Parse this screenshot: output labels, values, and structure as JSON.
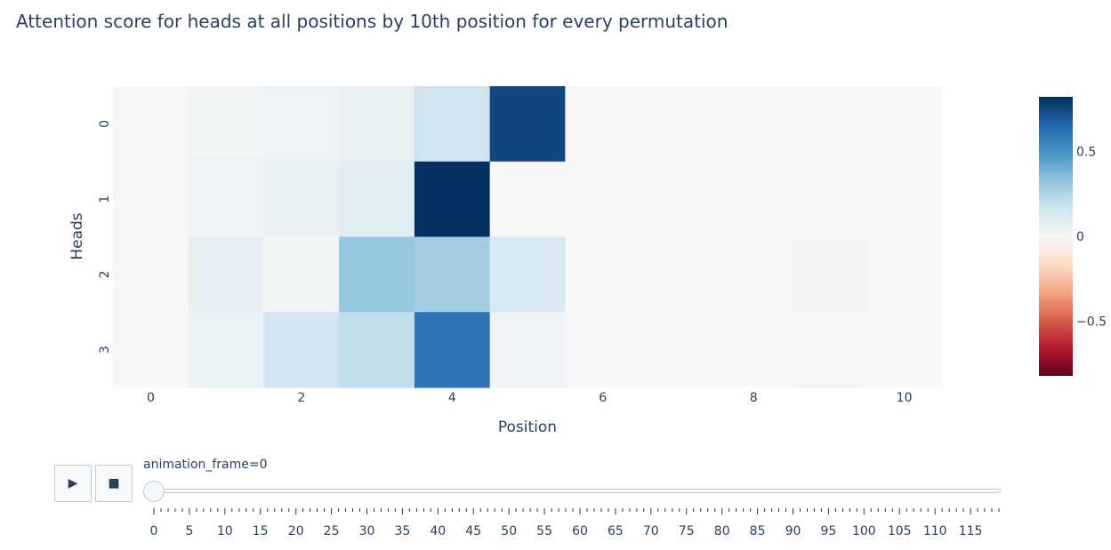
{
  "chart_data": {
    "type": "heatmap",
    "title": "Attention score for heads at all positions by 10th position for every permutation",
    "xlabel": "Position",
    "ylabel": "Heads",
    "x": [
      0,
      1,
      2,
      3,
      4,
      5,
      6,
      7,
      8,
      9,
      10
    ],
    "y": [
      0,
      1,
      2,
      3
    ],
    "z": [
      [
        0.01,
        0.02,
        0.04,
        0.06,
        0.17,
        0.75,
        0.0,
        0.0,
        0.0,
        0.0,
        0.0
      ],
      [
        0.0,
        0.03,
        0.06,
        0.09,
        0.82,
        0.01,
        0.0,
        0.0,
        0.0,
        0.0,
        0.0
      ],
      [
        0.0,
        0.07,
        0.02,
        0.32,
        0.29,
        0.13,
        0.0,
        0.0,
        0.0,
        0.015,
        0.0
      ],
      [
        0.0,
        0.05,
        0.16,
        0.2,
        0.6,
        0.03,
        0.0,
        0.0,
        0.0,
        0.005,
        0.0
      ]
    ],
    "xticks": [
      0,
      2,
      4,
      6,
      8,
      10
    ],
    "yticks": [
      0,
      1,
      2,
      3
    ],
    "colorscale": "RdBu",
    "zlim": [
      -0.82,
      0.82
    ],
    "colorbar_ticks": [
      0.5,
      0,
      -0.5
    ],
    "colorbar_tick_labels": [
      "0.5",
      "0",
      "−0.5"
    ],
    "grid": false,
    "plot_bg": "#f5f6f7"
  },
  "animation": {
    "label": "animation_frame=0",
    "current_frame": 0,
    "frame_count": 120,
    "tick_labels": [
      "0",
      "5",
      "10",
      "15",
      "20",
      "25",
      "30",
      "35",
      "40",
      "45",
      "50",
      "55",
      "60",
      "65",
      "70",
      "75",
      "80",
      "85",
      "90",
      "95",
      "100",
      "105",
      "110",
      "115"
    ],
    "play_icon": "▶",
    "stop_icon": "■"
  }
}
